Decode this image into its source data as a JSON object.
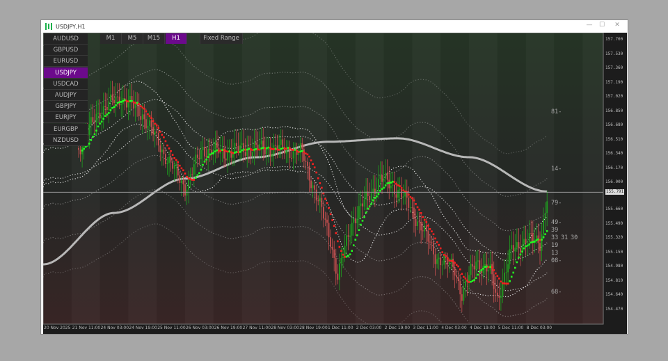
{
  "window": {
    "title": "USDJPY,H1",
    "minimize": "—",
    "maximize": "☐",
    "close": "✕"
  },
  "symbols": [
    "AUDUSD",
    "GBPUSD",
    "EURUSD",
    "USDJPY",
    "USDCAD",
    "AUDJPY",
    "GBPJPY",
    "EURJPY",
    "EURGBP",
    "NZDUSD"
  ],
  "active_symbol": "USDJPY",
  "timeframes": [
    "M1",
    "M5",
    "M15",
    "H1"
  ],
  "active_timeframe": "H1",
  "fixed_range_label": "Fixed Range",
  "price_axis": [
    "157.700",
    "157.530",
    "157.360",
    "157.190",
    "157.020",
    "156.850",
    "156.680",
    "156.510",
    "156.340",
    "156.170",
    "156.000",
    "155.660",
    "155.490",
    "155.320",
    "155.150",
    "154.980",
    "154.810",
    "154.640",
    "154.470"
  ],
  "current_price": "155.791",
  "time_axis": [
    "20 Nov 2025",
    "21 Nov 11:00",
    "24 Nov 03:00",
    "24 Nov 19:00",
    "25 Nov 11:00",
    "26 Nov 03:00",
    "26 Nov 19:00",
    "27 Nov 11:00",
    "28 Nov 03:00",
    "28 Nov 19:00",
    "1 Dec 11:00",
    "2 Dec 03:00",
    "2 Dec 19:00",
    "3 Dec 11:00",
    "4 Dec 03:00",
    "4 Dec 19:00",
    "5 Dec 11:00",
    "8 Dec 03:00"
  ],
  "level_labels": [
    "81-",
    "14-",
    "79-",
    "49-",
    "39",
    "33",
    "31",
    "30",
    "19",
    "13",
    "08-",
    "68-"
  ],
  "colors": {
    "accent": "#6c0a8c",
    "bull": "#1fa01f",
    "bear": "#c85050",
    "ma_up": "#22ff22",
    "ma_down": "#ff2020",
    "envelope": "#d0d0d0",
    "long_ma": "#c8c8c8"
  },
  "chart_data": {
    "type": "candlestick",
    "price_range": [
      154.35,
      157.75
    ],
    "closes_by_bar": [
      [
        20,
        156.3
      ],
      [
        32,
        156.75
      ],
      [
        44,
        156.9
      ],
      [
        56,
        156.7
      ],
      [
        68,
        156.25
      ],
      [
        80,
        155.85
      ],
      [
        90,
        156.3
      ],
      [
        102,
        156.25
      ],
      [
        114,
        156.3
      ],
      [
        134,
        156.3
      ],
      [
        146,
        156.25
      ],
      [
        154,
        155.75
      ],
      [
        162,
        155.25
      ],
      [
        166,
        154.8
      ],
      [
        174,
        155.45
      ],
      [
        182,
        155.7
      ],
      [
        190,
        155.95
      ],
      [
        201,
        155.8
      ],
      [
        213,
        155.4
      ],
      [
        221,
        155.05
      ],
      [
        232,
        154.9
      ],
      [
        236,
        154.6
      ],
      [
        244,
        155.0
      ],
      [
        252,
        154.85
      ],
      [
        256,
        154.55
      ],
      [
        264,
        155.1
      ],
      [
        272,
        155.25
      ],
      [
        280,
        155.2
      ],
      [
        284,
        155.75
      ]
    ]
  }
}
